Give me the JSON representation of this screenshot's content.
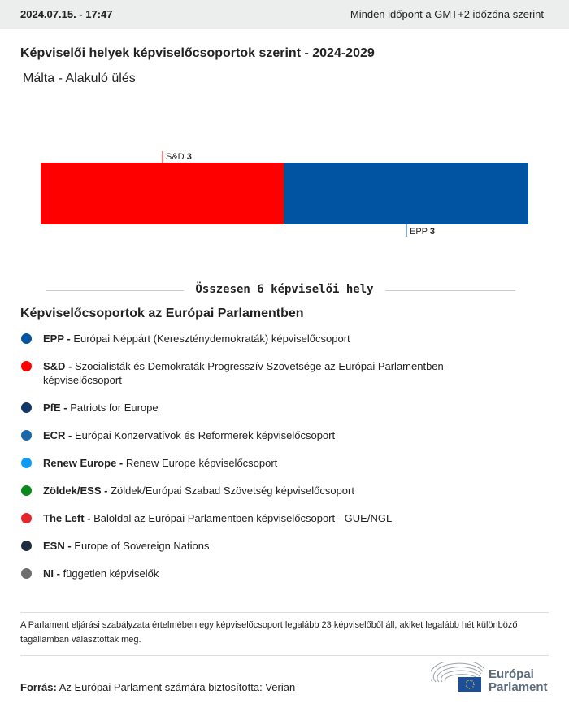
{
  "header": {
    "datetime": "2024.07.15. - 17:47",
    "timezone_note": "Minden időpont a GMT+2 időzóna szerint"
  },
  "title": "Képviselői helyek képviselőcsoportok szerint - 2024-2029",
  "subtitle": "Málta - Alakuló ülés",
  "chart_data": {
    "type": "bar",
    "orientation": "horizontal",
    "stacked": true,
    "categories": [
      "S&D",
      "EPP"
    ],
    "values": [
      3,
      3
    ],
    "colors": [
      "#ff0000",
      "#0054a2"
    ],
    "total_label": "Összesen 6 képviselői hely"
  },
  "legend": {
    "title": "Képviselőcsoportok az Európai Parlamentben",
    "items": [
      {
        "abbr": "EPP -",
        "name": "Európai Néppárt (Kereszténydemokraták) képviselőcsoport",
        "color": "#0054a2"
      },
      {
        "abbr": "S&D -",
        "name": "Szocialisták és Demokraták Progresszív Szövetsége az Európai Parlamentben képviselőcsoport",
        "color": "#ff0000"
      },
      {
        "abbr": "PfE -",
        "name": "Patriots for Europe",
        "color": "#12376a"
      },
      {
        "abbr": "ECR -",
        "name": "Európai Konzervatívok és Reformerek képviselőcsoport",
        "color": "#1c69aa"
      },
      {
        "abbr": "Renew Europe -",
        "name": "Renew Europe képviselőcsoport",
        "color": "#0b9bf5"
      },
      {
        "abbr": "Zöldek/ESS -",
        "name": "Zöldek/Európai Szabad Szövetség képviselőcsoport",
        "color": "#0a8a1a"
      },
      {
        "abbr": "The Left -",
        "name": "Baloldal az Európai Parlamentben képviselőcsoport - GUE/NGL",
        "color": "#e3262e"
      },
      {
        "abbr": "ESN -",
        "name": "Europe of Sovereign Nations",
        "color": "#202d40"
      },
      {
        "abbr": "NI -",
        "name": "független képviselők",
        "color": "#6e6e6e"
      }
    ]
  },
  "note": "A Parlament eljárási szabályzata értelmében egy képviselőcsoport legalább 23 képviselőből áll, akiket legalább hét különböző tagállamban választottak meg.",
  "source": {
    "label": "Forrás:",
    "text": "Az Európai Parlament számára biztosította: Verian"
  },
  "logo": {
    "line1": "Európai",
    "line2": "Parlament"
  }
}
